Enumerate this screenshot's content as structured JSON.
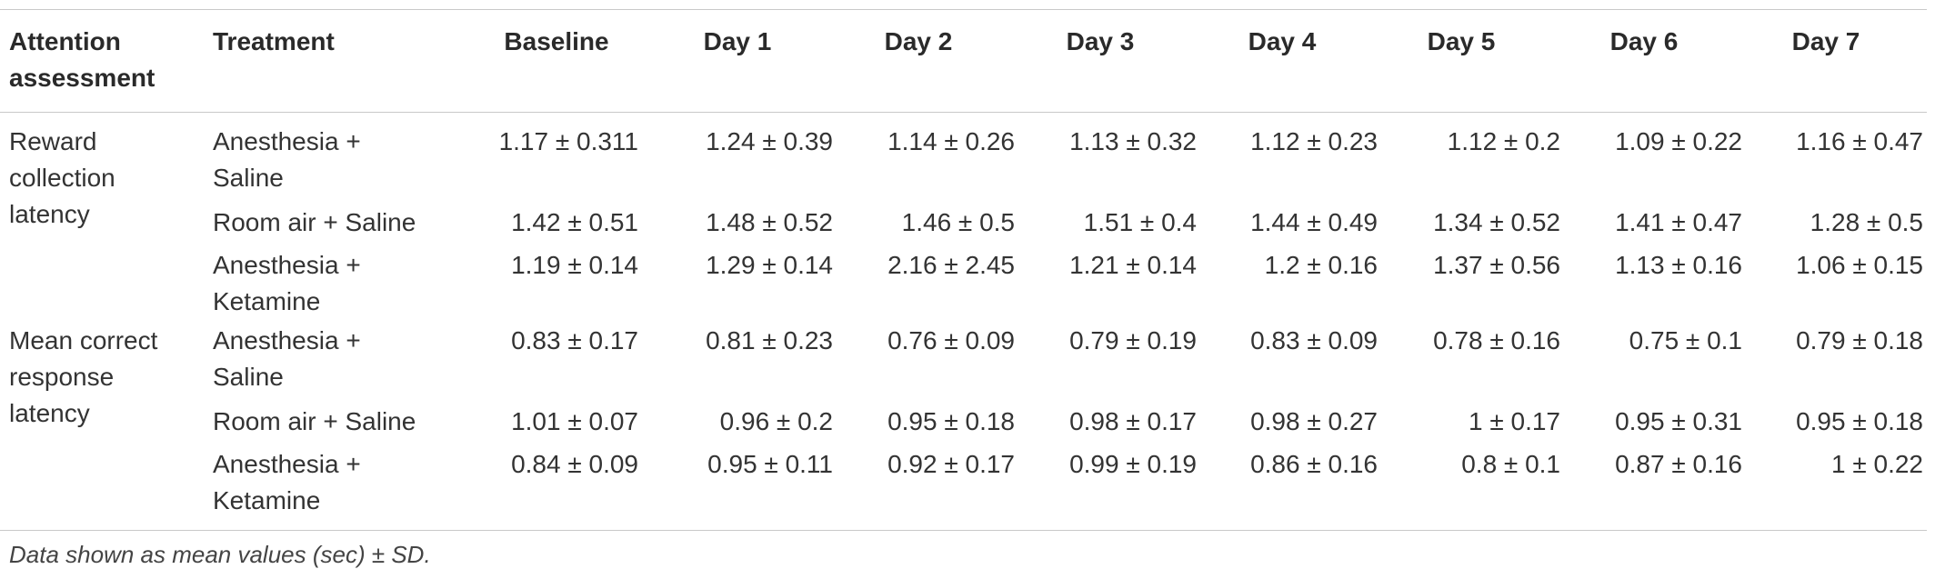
{
  "table": {
    "headers": [
      "Attention assessment",
      "Treatment",
      "Baseline",
      "Day 1",
      "Day 2",
      "Day 3",
      "Day 4",
      "Day 5",
      "Day 6",
      "Day 7"
    ],
    "groups": [
      {
        "assessment": "Reward collection latency",
        "rows": [
          {
            "treatment": "Anesthesia + Saline",
            "values": [
              "1.17 ± 0.311",
              "1.24 ± 0.39",
              "1.14 ± 0.26",
              "1.13 ± 0.32",
              "1.12 ± 0.23",
              "1.12 ± 0.2",
              "1.09 ± 0.22",
              "1.16 ± 0.47"
            ]
          },
          {
            "treatment": "Room air + Saline",
            "values": [
              "1.42 ± 0.51",
              "1.48 ± 0.52",
              "1.46 ± 0.5",
              "1.51 ± 0.4",
              "1.44 ± 0.49",
              "1.34 ± 0.52",
              "1.41 ± 0.47",
              "1.28 ± 0.5"
            ]
          },
          {
            "treatment": "Anesthesia + Ketamine",
            "values": [
              "1.19 ± 0.14",
              "1.29 ± 0.14",
              "2.16 ± 2.45",
              "1.21 ± 0.14",
              "1.2 ± 0.16",
              "1.37 ± 0.56",
              "1.13 ± 0.16",
              "1.06 ± 0.15"
            ]
          }
        ]
      },
      {
        "assessment": "Mean correct response latency",
        "rows": [
          {
            "treatment": "Anesthesia + Saline",
            "values": [
              "0.83 ± 0.17",
              "0.81 ± 0.23",
              "0.76 ± 0.09",
              "0.79 ± 0.19",
              "0.83 ± 0.09",
              "0.78 ± 0.16",
              "0.75 ± 0.1",
              "0.79 ± 0.18"
            ]
          },
          {
            "treatment": "Room air + Saline",
            "values": [
              "1.01 ± 0.07",
              "0.96 ± 0.2",
              "0.95 ± 0.18",
              "0.98 ± 0.17",
              "0.98 ± 0.27",
              "1 ± 0.17",
              "0.95 ± 0.31",
              "0.95 ± 0.18"
            ]
          },
          {
            "treatment": "Anesthesia + Ketamine",
            "values": [
              "0.84 ± 0.09",
              "0.95 ± 0.11",
              "0.92 ± 0.17",
              "0.99 ± 0.19",
              "0.86 ± 0.16",
              "0.8 ± 0.1",
              "0.87 ± 0.16",
              "1 ± 0.22"
            ]
          }
        ]
      }
    ],
    "footnote": "Data shown as mean values (sec) ± SD."
  }
}
